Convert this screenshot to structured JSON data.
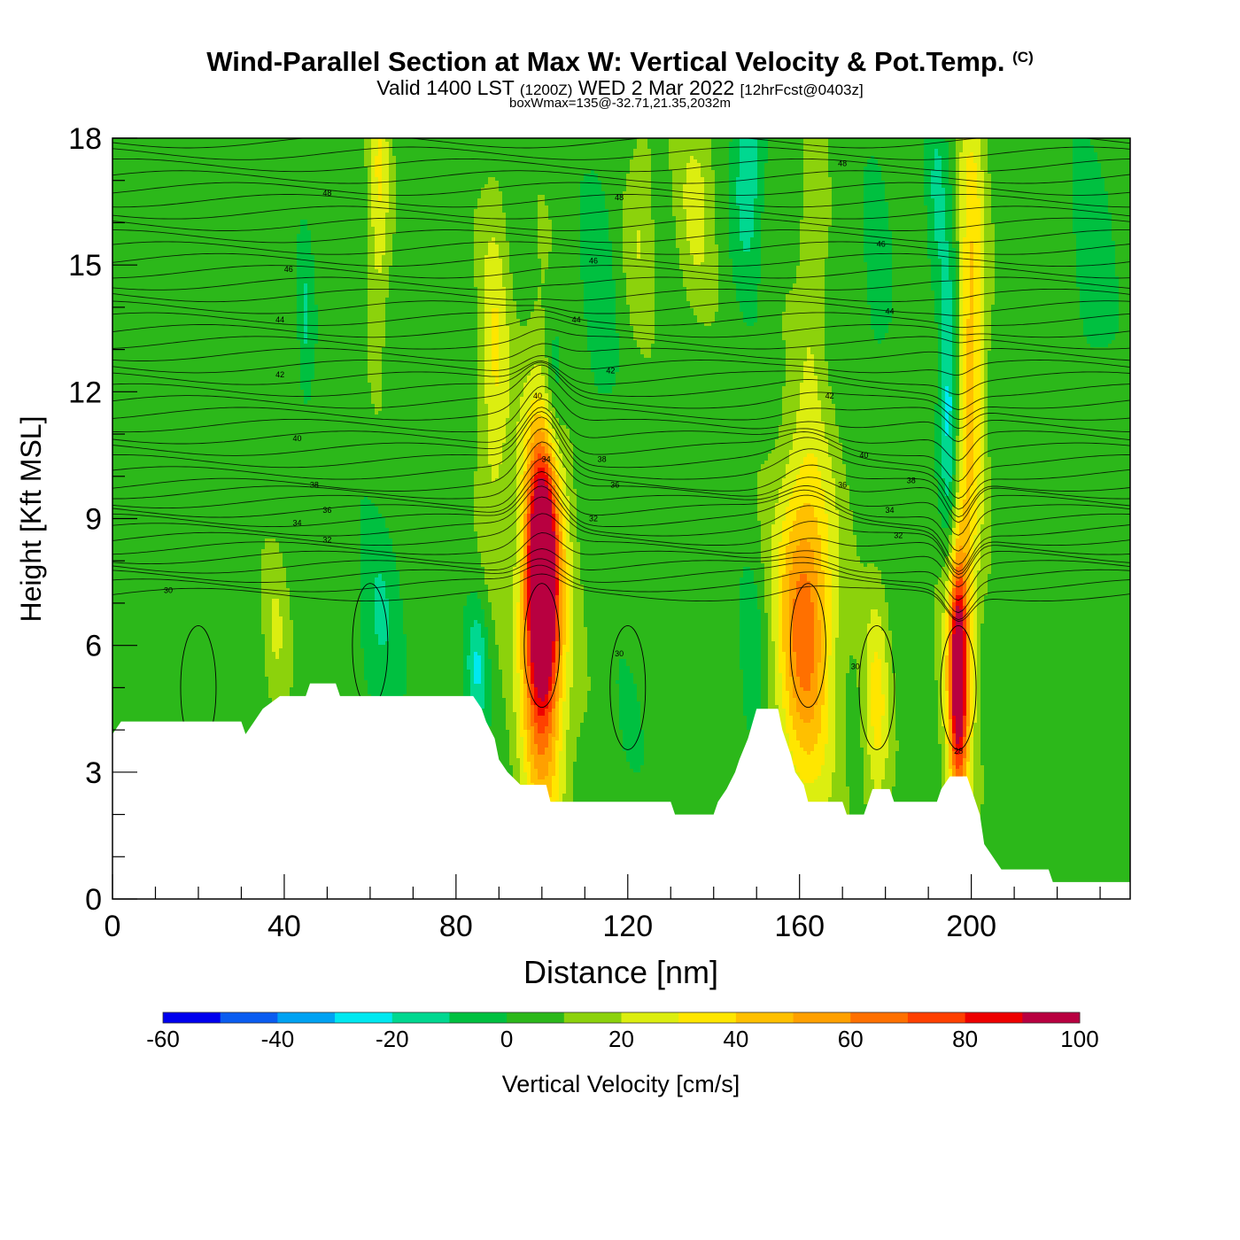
{
  "title": {
    "main": "Wind-Parallel Section at Max W: Vertical Velocity & Pot.Temp.",
    "copyright": "(C)",
    "valid_prefix": "Valid 1400 LST",
    "valid_utc": "(1200Z)",
    "valid_date": "WED 2 Mar 2022",
    "forecast": "[12hrFcst@0403z]",
    "box_info": "boxWmax=135@-32.71,21.35,2032m"
  },
  "chart_data": {
    "type": "heatmap",
    "title": "Wind-Parallel Section at Max W: Vertical Velocity & Pot.Temp.",
    "xlabel": "Distance [nm]",
    "ylabel": "Height [Kft MSL]",
    "xlim": [
      0,
      237
    ],
    "ylim": [
      0,
      18
    ],
    "x_ticks": [
      0,
      40,
      80,
      120,
      160,
      200
    ],
    "y_ticks": [
      0,
      3,
      6,
      9,
      12,
      15,
      18
    ],
    "colorbar": {
      "label": "Vertical Velocity [cm/s]",
      "ticks": [
        -60,
        -40,
        -20,
        0,
        20,
        40,
        60,
        80,
        100
      ],
      "bounds": [
        -60,
        -50,
        -40,
        -30,
        -20,
        -10,
        0,
        10,
        20,
        30,
        40,
        50,
        60,
        70,
        80,
        90,
        100
      ],
      "colors": [
        "#0000ee",
        "#0a5cf0",
        "#00a2f2",
        "#00e8f0",
        "#00d890",
        "#00c040",
        "#2cb81a",
        "#8cd20c",
        "#dcee10",
        "#ffe600",
        "#ffc000",
        "#ffa000",
        "#ff7000",
        "#ff4000",
        "#ee0000",
        "#b80040"
      ]
    },
    "background_value": 5,
    "terrain_kft": [
      [
        0,
        3.9
      ],
      [
        2,
        4.2
      ],
      [
        30,
        4.2
      ],
      [
        31,
        3.9
      ],
      [
        33,
        4.2
      ],
      [
        35,
        4.5
      ],
      [
        39,
        4.8
      ],
      [
        45,
        4.8
      ],
      [
        46,
        5.1
      ],
      [
        52,
        5.1
      ],
      [
        53,
        4.8
      ],
      [
        84,
        4.8
      ],
      [
        86,
        4.5
      ],
      [
        87,
        4.2
      ],
      [
        89,
        3.8
      ],
      [
        90,
        3.3
      ],
      [
        92,
        3.0
      ],
      [
        95,
        2.7
      ],
      [
        101,
        2.7
      ],
      [
        102,
        2.3
      ],
      [
        130,
        2.3
      ],
      [
        131,
        2.0
      ],
      [
        140,
        2.0
      ],
      [
        141,
        2.3
      ],
      [
        143,
        2.6
      ],
      [
        145,
        3.0
      ],
      [
        146,
        3.3
      ],
      [
        148,
        3.8
      ],
      [
        150,
        4.5
      ],
      [
        155,
        4.5
      ],
      [
        156,
        4.0
      ],
      [
        158,
        3.4
      ],
      [
        159,
        3.0
      ],
      [
        161,
        2.7
      ],
      [
        162,
        2.3
      ],
      [
        170,
        2.3
      ],
      [
        171,
        2.0
      ],
      [
        175,
        2.0
      ],
      [
        176,
        2.3
      ],
      [
        177,
        2.6
      ],
      [
        181,
        2.6
      ],
      [
        182,
        2.3
      ],
      [
        192,
        2.3
      ],
      [
        193,
        2.6
      ],
      [
        195,
        2.9
      ],
      [
        199,
        2.9
      ],
      [
        200,
        2.6
      ],
      [
        202,
        2.0
      ],
      [
        203,
        1.3
      ],
      [
        205,
        1.0
      ],
      [
        207,
        0.7
      ],
      [
        213,
        0.7
      ],
      [
        218,
        0.7
      ],
      [
        219,
        0.4
      ],
      [
        237,
        0.4
      ]
    ],
    "features": [
      {
        "x": 100,
        "y": 7.6,
        "rx": 3.2,
        "ry": 2.6,
        "v": 85
      },
      {
        "x": 100,
        "y": 6.8,
        "rx": 4.8,
        "ry": 4.5,
        "v": 55
      },
      {
        "x": 101,
        "y": 6.5,
        "rx": 6.5,
        "ry": 6.5,
        "v": 20
      },
      {
        "x": 89,
        "y": 12.5,
        "rx": 3.5,
        "ry": 4.2,
        "v": 25
      },
      {
        "x": 161,
        "y": 6.6,
        "rx": 6,
        "ry": 3.6,
        "v": 42
      },
      {
        "x": 162,
        "y": 6.2,
        "rx": 8,
        "ry": 5.5,
        "v": 20
      },
      {
        "x": 197,
        "y": 5.3,
        "rx": 2,
        "ry": 2.6,
        "v": 75
      },
      {
        "x": 197,
        "y": 5.6,
        "rx": 3.5,
        "ry": 4.2,
        "v": 40
      },
      {
        "x": 178,
        "y": 4.5,
        "rx": 3,
        "ry": 2.8,
        "v": 28
      },
      {
        "x": 200,
        "y": 13.5,
        "rx": 3.2,
        "ry": 5.5,
        "v": 40
      },
      {
        "x": 195,
        "y": 11.5,
        "rx": 2.2,
        "ry": 3.5,
        "v": -35
      },
      {
        "x": 192,
        "y": 16.5,
        "rx": 2.5,
        "ry": 2.8,
        "v": -15
      },
      {
        "x": 103,
        "y": 12.2,
        "rx": 2.5,
        "ry": 2.2,
        "v": -20
      },
      {
        "x": 85,
        "y": 5.5,
        "rx": 2.5,
        "ry": 1.5,
        "v": -25
      },
      {
        "x": 149,
        "y": 5.4,
        "rx": 3,
        "ry": 2.2,
        "v": -15
      },
      {
        "x": 148,
        "y": 17.3,
        "rx": 3.5,
        "ry": 2.5,
        "v": -25
      },
      {
        "x": 62,
        "y": 16.8,
        "rx": 2.5,
        "ry": 3.5,
        "v": 25
      },
      {
        "x": 136,
        "y": 16.5,
        "rx": 4.5,
        "ry": 2.5,
        "v": 18
      },
      {
        "x": 113,
        "y": 14.5,
        "rx": 4,
        "ry": 3.5,
        "v": -12
      },
      {
        "x": 228,
        "y": 15,
        "rx": 5,
        "ry": 3,
        "v": -12
      },
      {
        "x": 120,
        "y": 4.0,
        "rx": 4,
        "ry": 2,
        "v": -5
      },
      {
        "x": 62,
        "y": 6.5,
        "rx": 5,
        "ry": 2.5,
        "v": -15
      },
      {
        "x": 38,
        "y": 6.2,
        "rx": 3,
        "ry": 2.0,
        "v": 15
      },
      {
        "x": 45,
        "y": 13.5,
        "rx": 1.8,
        "ry": 2.2,
        "v": -15
      },
      {
        "x": 163,
        "y": 15.5,
        "rx": 3,
        "ry": 3.2,
        "v": 15
      },
      {
        "x": 178,
        "y": 15,
        "rx": 3,
        "ry": 2.5,
        "v": -12
      },
      {
        "x": 123,
        "y": 16,
        "rx": 3.5,
        "ry": 2.5,
        "v": 15
      }
    ],
    "theta_labels": [
      {
        "x": 50,
        "y": 16.7,
        "text": "48"
      },
      {
        "x": 118,
        "y": 16.6,
        "text": "48"
      },
      {
        "x": 170,
        "y": 17.4,
        "text": "48"
      },
      {
        "x": 41,
        "y": 14.9,
        "text": "46"
      },
      {
        "x": 112,
        "y": 15.1,
        "text": "46"
      },
      {
        "x": 179,
        "y": 15.5,
        "text": "46"
      },
      {
        "x": 39,
        "y": 13.7,
        "text": "44"
      },
      {
        "x": 108,
        "y": 13.7,
        "text": "44"
      },
      {
        "x": 181,
        "y": 13.9,
        "text": "44"
      },
      {
        "x": 39,
        "y": 12.4,
        "text": "42"
      },
      {
        "x": 116,
        "y": 12.5,
        "text": "42"
      },
      {
        "x": 167,
        "y": 11.9,
        "text": "42"
      },
      {
        "x": 43,
        "y": 10.9,
        "text": "40"
      },
      {
        "x": 99,
        "y": 11.9,
        "text": "40"
      },
      {
        "x": 175,
        "y": 10.5,
        "text": "40"
      },
      {
        "x": 47,
        "y": 9.8,
        "text": "38"
      },
      {
        "x": 114,
        "y": 10.4,
        "text": "38"
      },
      {
        "x": 186,
        "y": 9.9,
        "text": "38"
      },
      {
        "x": 50,
        "y": 9.2,
        "text": "36"
      },
      {
        "x": 117,
        "y": 9.8,
        "text": "36"
      },
      {
        "x": 170,
        "y": 9.8,
        "text": "36"
      },
      {
        "x": 43,
        "y": 8.9,
        "text": "34"
      },
      {
        "x": 101,
        "y": 10.4,
        "text": "34"
      },
      {
        "x": 181,
        "y": 9.2,
        "text": "34"
      },
      {
        "x": 50,
        "y": 8.5,
        "text": "32"
      },
      {
        "x": 112,
        "y": 9.0,
        "text": "32"
      },
      {
        "x": 183,
        "y": 8.6,
        "text": "32"
      },
      {
        "x": 13,
        "y": 7.3,
        "text": "30"
      },
      {
        "x": 118,
        "y": 5.8,
        "text": "30"
      },
      {
        "x": 173,
        "y": 5.5,
        "text": "30"
      },
      {
        "x": 197,
        "y": 3.5,
        "text": "28"
      }
    ]
  }
}
